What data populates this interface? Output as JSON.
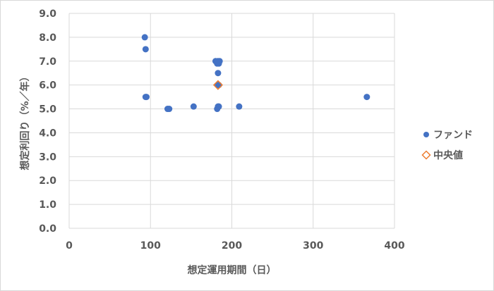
{
  "chart_data": {
    "type": "scatter",
    "xlabel": "想定運用期間（日）",
    "ylabel": "想定利回り（%／年）",
    "xlim": [
      0,
      400
    ],
    "ylim": [
      0.0,
      9.0
    ],
    "x_ticks": [
      "0",
      "100",
      "200",
      "300",
      "400"
    ],
    "y_ticks": [
      "0.0",
      "1.0",
      "2.0",
      "3.0",
      "4.0",
      "5.0",
      "6.0",
      "7.0",
      "8.0",
      "9.0"
    ],
    "grid": true,
    "legend_position": "right",
    "series": [
      {
        "name": "ファンド",
        "marker": "circle",
        "color": "#4472c4",
        "points": [
          {
            "x": 93,
            "y": 8.0
          },
          {
            "x": 94,
            "y": 7.5
          },
          {
            "x": 94,
            "y": 5.5
          },
          {
            "x": 95,
            "y": 5.5
          },
          {
            "x": 121,
            "y": 5.0
          },
          {
            "x": 123,
            "y": 5.0
          },
          {
            "x": 153,
            "y": 5.1
          },
          {
            "x": 180,
            "y": 7.0
          },
          {
            "x": 182,
            "y": 6.9
          },
          {
            "x": 183,
            "y": 7.0
          },
          {
            "x": 184,
            "y": 6.9
          },
          {
            "x": 185,
            "y": 7.0
          },
          {
            "x": 183,
            "y": 6.5
          },
          {
            "x": 183,
            "y": 6.0
          },
          {
            "x": 184,
            "y": 6.0
          },
          {
            "x": 182,
            "y": 5.0
          },
          {
            "x": 183,
            "y": 5.1
          },
          {
            "x": 184,
            "y": 5.1
          },
          {
            "x": 209,
            "y": 5.1
          },
          {
            "x": 366,
            "y": 5.5
          }
        ]
      },
      {
        "name": "中央値",
        "marker": "diamond",
        "color": "#ed7d31",
        "points": [
          {
            "x": 183,
            "y": 6.0
          }
        ]
      }
    ]
  }
}
